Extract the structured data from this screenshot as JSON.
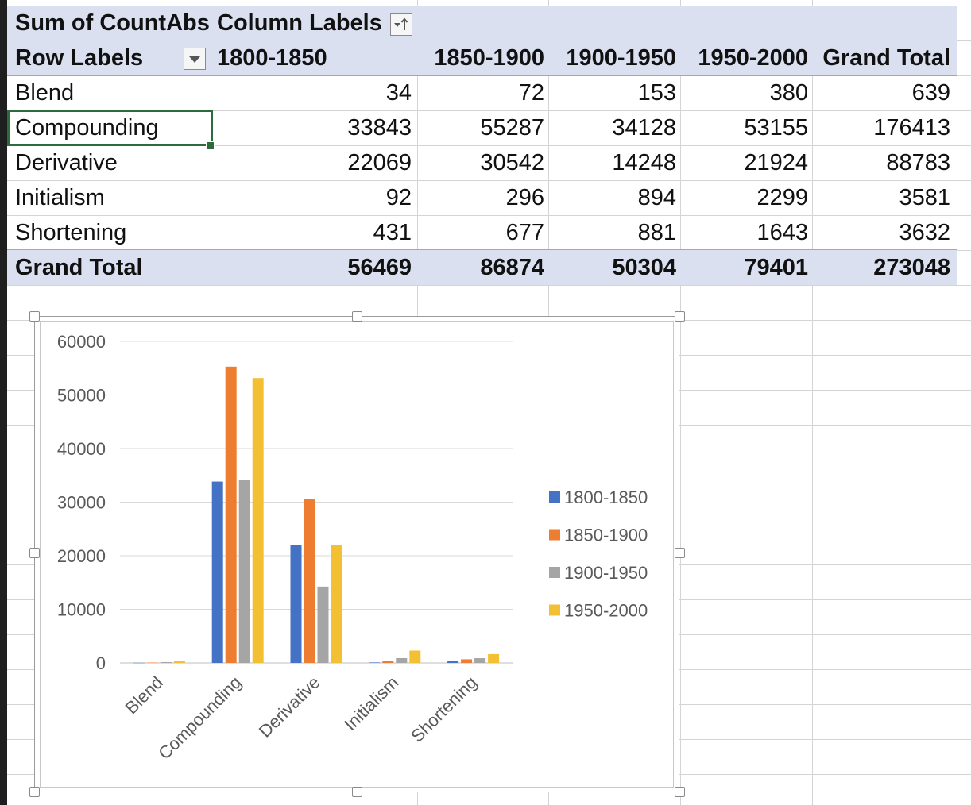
{
  "pivot": {
    "measure_label": "Sum of CountAbs",
    "column_labels": "Column Labels",
    "row_labels": "Row Labels",
    "columns": [
      "1800-1850",
      "1850-1900",
      "1900-1950",
      "1950-2000",
      "Grand Total"
    ],
    "rows": [
      {
        "label": "Blend",
        "values": [
          "34",
          "72",
          "153",
          "380",
          "639"
        ]
      },
      {
        "label": "Compounding",
        "values": [
          "33843",
          "55287",
          "34128",
          "53155",
          "176413"
        ]
      },
      {
        "label": "Derivative",
        "values": [
          "22069",
          "30542",
          "14248",
          "21924",
          "88783"
        ]
      },
      {
        "label": "Initialism",
        "values": [
          "92",
          "296",
          "894",
          "2299",
          "3581"
        ]
      },
      {
        "label": "Shortening",
        "values": [
          "431",
          "677",
          "881",
          "1643",
          "3632"
        ]
      }
    ],
    "grand_total": {
      "label": "Grand Total",
      "values": [
        "56469",
        "86874",
        "50304",
        "79401",
        "273048"
      ]
    }
  },
  "chart_data": {
    "type": "bar",
    "categories": [
      "Blend",
      "Compounding",
      "Derivative",
      "Initialism",
      "Shortening"
    ],
    "series": [
      {
        "name": "1800-1850",
        "color": "#4472c4",
        "values": [
          34,
          33843,
          22069,
          92,
          431
        ]
      },
      {
        "name": "1850-1900",
        "color": "#ed7d31",
        "values": [
          72,
          55287,
          30542,
          296,
          677
        ]
      },
      {
        "name": "1900-1950",
        "color": "#a5a5a5",
        "values": [
          153,
          34128,
          14248,
          894,
          881
        ]
      },
      {
        "name": "1950-2000",
        "color": "#f4c033",
        "values": [
          380,
          53155,
          21924,
          2299,
          1643
        ]
      }
    ],
    "ylim": [
      0,
      60000
    ],
    "yticks": [
      "0",
      "10000",
      "20000",
      "30000",
      "40000",
      "50000",
      "60000"
    ],
    "grid": true,
    "legend_position": "right",
    "title": "",
    "xlabel": "",
    "ylabel": ""
  },
  "colors": {
    "header_band": "#dae0f0",
    "active_cell_border": "#2d6a3e"
  }
}
